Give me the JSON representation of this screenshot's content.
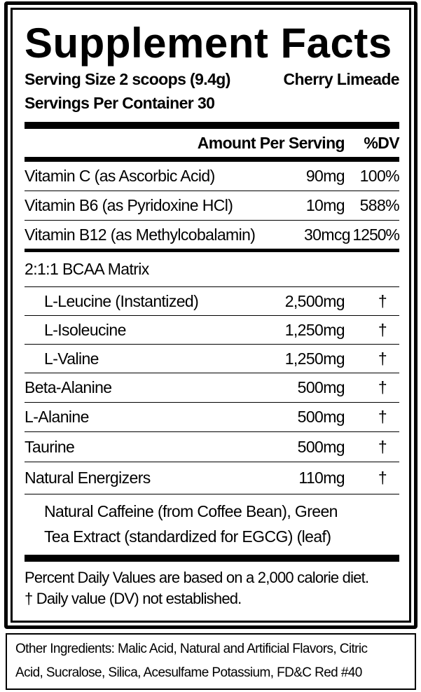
{
  "title": "Supplement Facts",
  "serving_size": "Serving Size 2 scoops (9.4g)",
  "flavor": "Cherry Limeade",
  "servings_per_container": "Servings Per Container 30",
  "header": {
    "amount": "Amount Per Serving",
    "dv": "%DV"
  },
  "vitamins": [
    {
      "name": "Vitamin C (as Ascorbic Acid)",
      "amount": "90mg",
      "dv": "100%"
    },
    {
      "name": "Vitamin B6 (as Pyridoxine HCl)",
      "amount": "10mg",
      "dv": "588%"
    },
    {
      "name": "Vitamin B12 (as Methylcobalamin)",
      "amount": "30mcg",
      "dv": "1250%"
    }
  ],
  "bcaa_title": "2:1:1 BCAA Matrix",
  "bcaa": [
    {
      "name": "L-Leucine (Instantized)",
      "amount": "2,500mg",
      "dv": "†"
    },
    {
      "name": "L-Isoleucine",
      "amount": "1,250mg",
      "dv": "†"
    },
    {
      "name": "L-Valine",
      "amount": "1,250mg",
      "dv": "†"
    }
  ],
  "others": [
    {
      "name": "Beta-Alanine",
      "amount": "500mg",
      "dv": "†"
    },
    {
      "name": "L-Alanine",
      "amount": "500mg",
      "dv": "†"
    },
    {
      "name": "Taurine",
      "amount": "500mg",
      "dv": "†"
    },
    {
      "name": "Natural Energizers",
      "amount": "110mg",
      "dv": "†"
    }
  ],
  "energizers_desc": [
    "Natural Caffeine (from Coffee Bean), Green",
    "Tea Extract (standardized for EGCG) (leaf)"
  ],
  "footnotes": [
    "Percent Daily Values are based on a 2,000 calorie diet.",
    "† Daily value (DV) not established."
  ],
  "other_ingredients": [
    "Other Ingredients: Malic Acid, Natural and Artificial Flavors, Citric",
    "Acid, Sucralose, Silica, Acesulfame Potassium, FD&C Red #40"
  ]
}
